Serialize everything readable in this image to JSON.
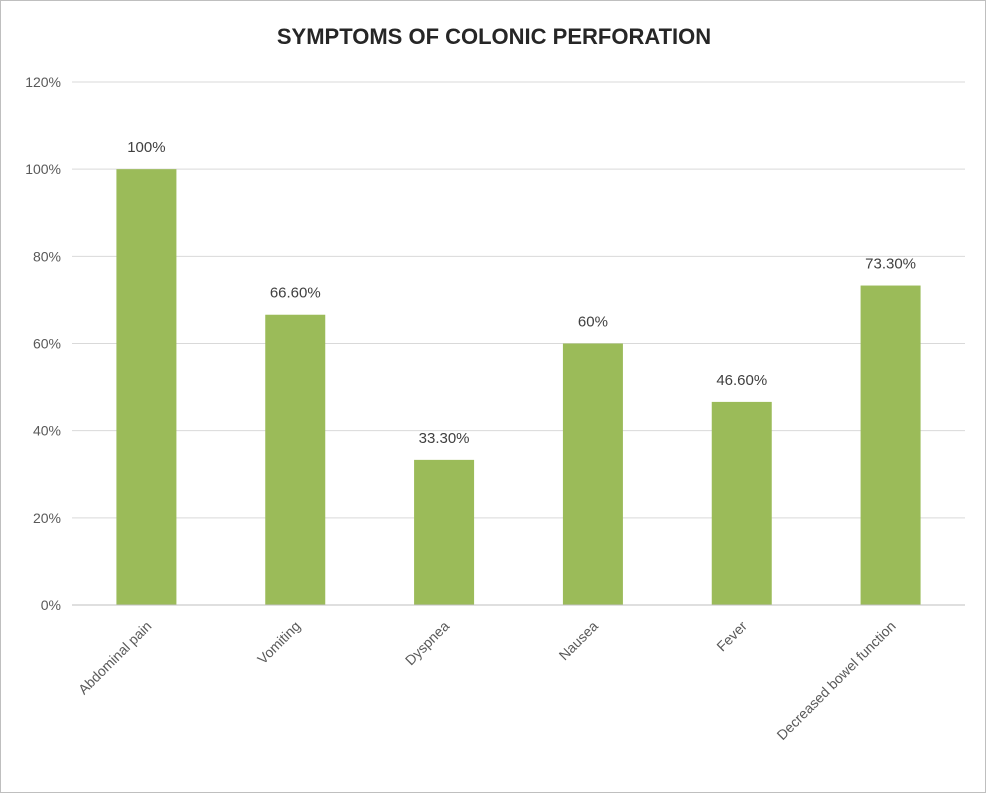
{
  "chart_data": {
    "type": "bar",
    "title": "SYMPTOMS OF COLONIC PERFORATION",
    "categories": [
      "Abdominal pain",
      "Vomiting",
      "Dyspnea",
      "Nausea",
      "Fever",
      "Decreased bowel function"
    ],
    "values": [
      100,
      66.6,
      33.3,
      60,
      46.6,
      73.3
    ],
    "data_labels": [
      "100%",
      "66.60%",
      "33.30%",
      "60%",
      "46.60%",
      "73.30%"
    ],
    "y_ticks": [
      "0%",
      "20%",
      "40%",
      "60%",
      "80%",
      "100%",
      "120%"
    ],
    "ylim": [
      0,
      120
    ],
    "grid": true,
    "legend": "none",
    "bar_color": "#9bbb59"
  }
}
